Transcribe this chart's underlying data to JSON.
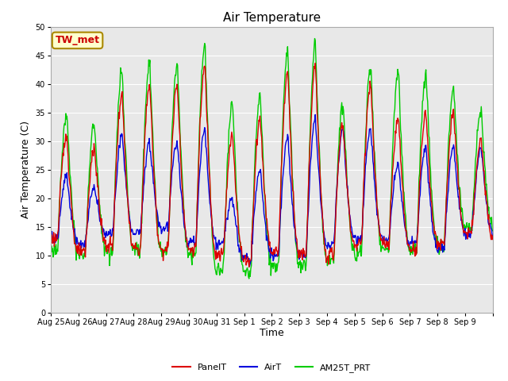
{
  "title": "Air Temperature",
  "ylabel": "Air Temperature (C)",
  "xlabel": "Time",
  "ylim": [
    0,
    50
  ],
  "yticks": [
    0,
    5,
    10,
    15,
    20,
    25,
    30,
    35,
    40,
    45,
    50
  ],
  "x_tick_labels": [
    "Aug 25",
    "Aug 26",
    "Aug 27",
    "Aug 28",
    "Aug 29",
    "Aug 30",
    "Aug 31",
    "Sep 1",
    "Sep 2",
    "Sep 3",
    "Sep 4",
    "Sep 5",
    "Sep 6",
    "Sep 7",
    "Sep 8",
    "Sep 9"
  ],
  "annotation_text": "TW_met",
  "annotation_color": "#cc0000",
  "annotation_bg": "#ffffcc",
  "annotation_border": "#aa8800",
  "panel_color": "#dd0000",
  "air_color": "#0000dd",
  "am25_color": "#00cc00",
  "plot_bg": "#e8e8e8",
  "grid_color": "#ffffff",
  "title_fontsize": 11,
  "axis_fontsize": 9,
  "tick_fontsize": 7,
  "legend_fontsize": 8
}
